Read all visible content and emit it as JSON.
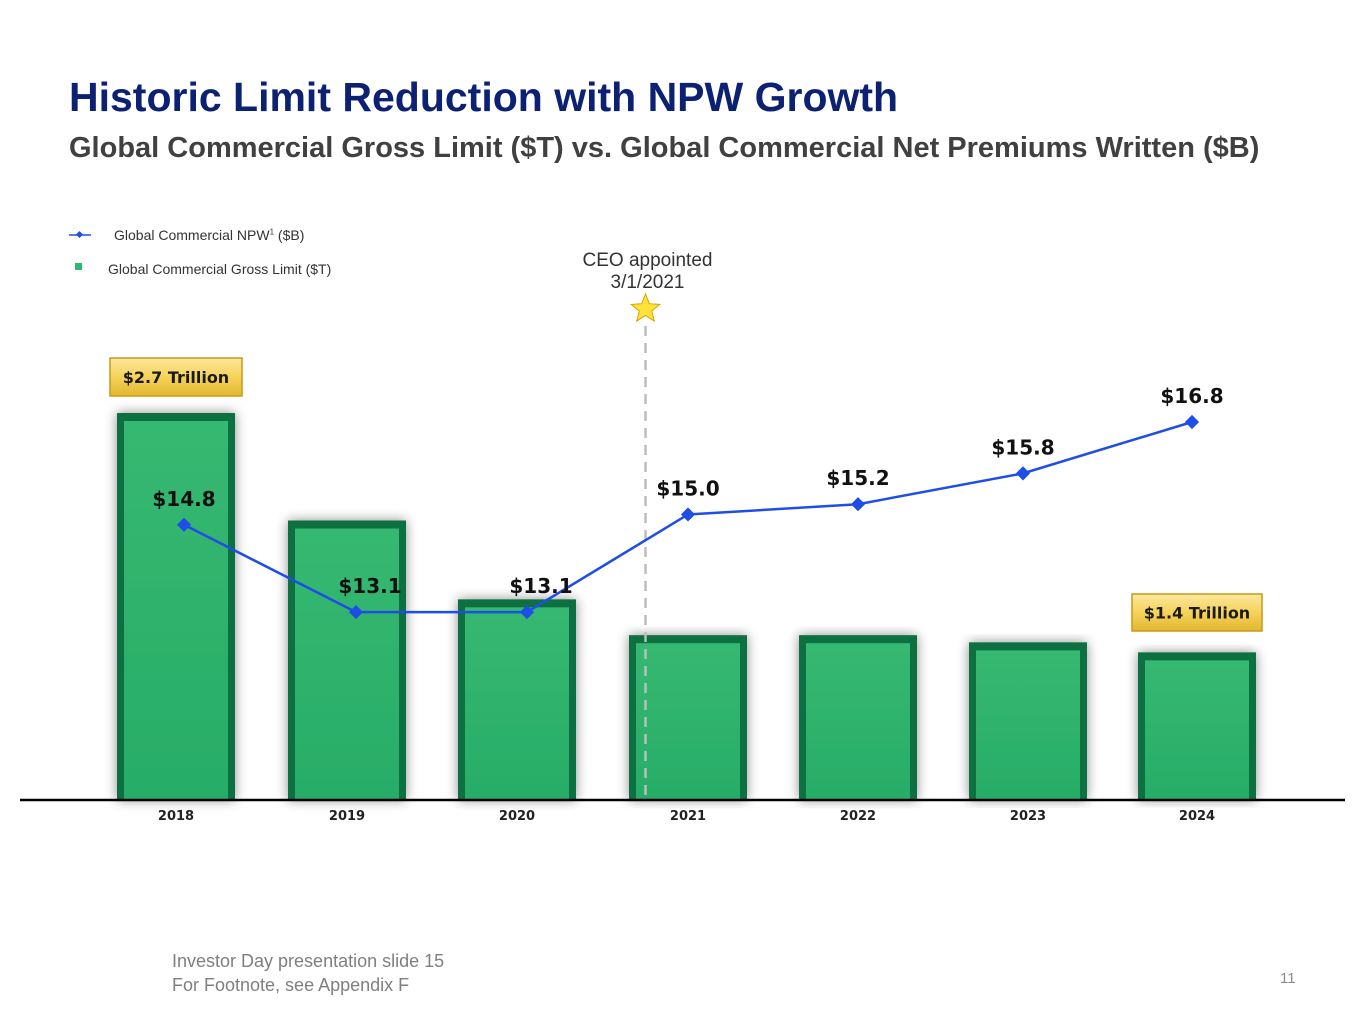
{
  "title": "Historic Limit Reduction with NPW Growth",
  "subtitle": "Global Commercial Gross Limit ($T) vs. Global Commercial Net Premiums Written ($B)",
  "legend": {
    "npw_label": "Global Commercial NPW",
    "npw_sup": "1",
    "npw_unit": " ($B)",
    "limit_label": "Global Commercial Gross Limit ($T)"
  },
  "annotation": {
    "line1": "CEO appointed",
    "line2": "3/1/2021"
  },
  "callouts": {
    "first": "$2.7 Trillion",
    "last": "$1.4 Trillion"
  },
  "footer": {
    "line1": "Investor Day presentation slide 15",
    "line2": "For Footnote, see Appendix F"
  },
  "page_number": "11",
  "colors": {
    "title": "#0d2173",
    "bar": "#2eb872",
    "bar_edge": "#11703f",
    "line": "#1f4ee6",
    "callout": "#f5d35a",
    "star": "#ffe23a"
  },
  "chart_data": {
    "type": "bar",
    "categories": [
      "2018",
      "2019",
      "2020",
      "2021",
      "2022",
      "2023",
      "2024"
    ],
    "series": [
      {
        "name": "Global Commercial Gross Limit ($T)",
        "type": "bar",
        "values": [
          2.7,
          1.95,
          1.4,
          1.15,
          1.15,
          1.1,
          1.03
        ]
      },
      {
        "name": "Global Commercial NPW1 ($B)",
        "type": "line",
        "values": [
          14.8,
          13.1,
          13.1,
          15.0,
          15.2,
          15.8,
          16.8
        ],
        "labels": [
          "$14.8",
          "$13.1",
          "$13.1",
          "$15.0",
          "$15.2",
          "$15.8",
          "$16.8"
        ]
      }
    ],
    "bar_ylim": [
      0,
      2.7
    ],
    "line_ylim": [
      11.0,
      16.8
    ],
    "annotation_year": "2021"
  }
}
